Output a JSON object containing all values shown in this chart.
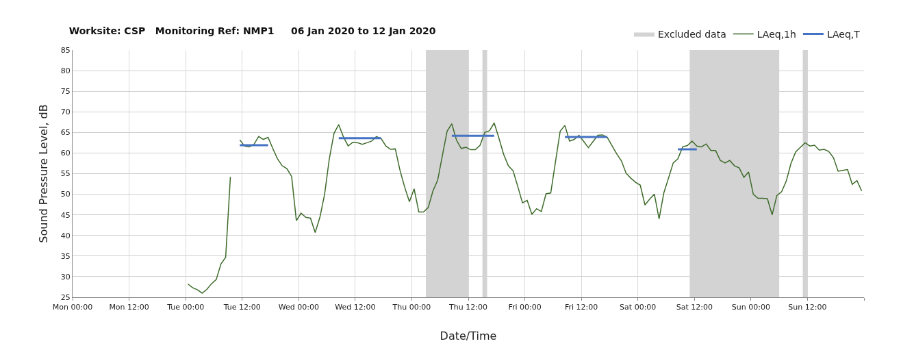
{
  "chart_data": {
    "type": "line",
    "title": "Worksite: CSP   Monitoring Ref: NMP1     06 Jan 2020 to 12 Jan 2020",
    "xlabel": "Date/Time",
    "ylabel": "Sound Pressure Level, dB",
    "xlim": [
      "2020-01-06T00:00",
      "2020-01-13T00:00"
    ],
    "ylim": [
      25,
      85
    ],
    "yticks": [
      25,
      30,
      35,
      40,
      45,
      50,
      55,
      60,
      65,
      70,
      75,
      80,
      85
    ],
    "xticks": [
      {
        "value": "2020-01-06T00:00",
        "label": "Mon 00:00"
      },
      {
        "value": "2020-01-06T12:00",
        "label": "Mon 12:00"
      },
      {
        "value": "2020-01-07T00:00",
        "label": "Tue 00:00"
      },
      {
        "value": "2020-01-07T12:00",
        "label": "Tue 12:00"
      },
      {
        "value": "2020-01-08T00:00",
        "label": "Wed 00:00"
      },
      {
        "value": "2020-01-08T12:00",
        "label": "Wed 12:00"
      },
      {
        "value": "2020-01-09T00:00",
        "label": "Thu 00:00"
      },
      {
        "value": "2020-01-09T12:00",
        "label": "Thu 12:00"
      },
      {
        "value": "2020-01-10T00:00",
        "label": "Fri 00:00"
      },
      {
        "value": "2020-01-10T12:00",
        "label": "Fri 12:00"
      },
      {
        "value": "2020-01-11T00:00",
        "label": "Sat 00:00"
      },
      {
        "value": "2020-01-11T12:00",
        "label": "Sat 12:00"
      },
      {
        "value": "2020-01-12T00:00",
        "label": "Sun 00:00"
      },
      {
        "value": "2020-01-12T12:00",
        "label": "Sun 12:00"
      },
      {
        "value": "2020-01-13T00:00",
        "label": null
      }
    ],
    "grid": true,
    "legend": "top right",
    "marker": "none",
    "line_style": "solid",
    "bands": [
      {
        "axis": "x",
        "from": "2020-01-09T03:00",
        "to": "2020-01-09T12:00",
        "label": "Excluded data",
        "color": "#d3d3d3"
      },
      {
        "axis": "x",
        "from": "2020-01-09T15:00",
        "to": "2020-01-09T16:00",
        "color": "#d3d3d3"
      },
      {
        "axis": "x",
        "from": "2020-01-11T11:00",
        "to": "2020-01-12T06:00",
        "color": "#d3d3d3"
      },
      {
        "axis": "x",
        "from": "2020-01-12T11:00",
        "to": "2020-01-12T12:00",
        "color": "#d3d3d3"
      }
    ],
    "series": [
      {
        "name": "LAeq,1h",
        "color": "#3d6b2a",
        "x": [
          "2020-01-07T00:30",
          "2020-01-07T01:30",
          "2020-01-07T02:30",
          "2020-01-07T03:30",
          "2020-01-07T04:30",
          "2020-01-07T05:30",
          "2020-01-07T06:30",
          "2020-01-07T07:30",
          "2020-01-07T08:30",
          "2020-01-07T09:30",
          "2020-01-07T10:30",
          "2020-01-07T11:30",
          "2020-01-07T12:30",
          "2020-01-07T13:30",
          "2020-01-07T14:30",
          "2020-01-07T15:30",
          "2020-01-07T16:30",
          "2020-01-07T17:30",
          "2020-01-07T18:30",
          "2020-01-07T19:30",
          "2020-01-07T20:30",
          "2020-01-07T21:30",
          "2020-01-07T22:30",
          "2020-01-07T23:30",
          "2020-01-08T00:30",
          "2020-01-08T01:30",
          "2020-01-08T02:30",
          "2020-01-08T03:30",
          "2020-01-08T04:30",
          "2020-01-08T05:30",
          "2020-01-08T06:30",
          "2020-01-08T07:30",
          "2020-01-08T08:30",
          "2020-01-08T09:30",
          "2020-01-08T10:30",
          "2020-01-08T11:30",
          "2020-01-08T12:30",
          "2020-01-08T13:30",
          "2020-01-08T14:30",
          "2020-01-08T15:30",
          "2020-01-08T16:30",
          "2020-01-08T17:30",
          "2020-01-08T18:30",
          "2020-01-08T19:30",
          "2020-01-08T20:30",
          "2020-01-08T21:30",
          "2020-01-08T22:30",
          "2020-01-08T23:30",
          "2020-01-09T00:30",
          "2020-01-09T01:30",
          "2020-01-09T02:30",
          "2020-01-09T03:30",
          "2020-01-09T04:30",
          "2020-01-09T05:30",
          "2020-01-09T06:30",
          "2020-01-09T07:30",
          "2020-01-09T08:30",
          "2020-01-09T09:30",
          "2020-01-09T10:30",
          "2020-01-09T11:30",
          "2020-01-09T12:30",
          "2020-01-09T13:30",
          "2020-01-09T14:30",
          "2020-01-09T15:30",
          "2020-01-09T16:30",
          "2020-01-09T17:30",
          "2020-01-09T18:30",
          "2020-01-09T19:30",
          "2020-01-09T20:30",
          "2020-01-09T21:30",
          "2020-01-09T22:30",
          "2020-01-09T23:30",
          "2020-01-10T00:30",
          "2020-01-10T01:30",
          "2020-01-10T02:30",
          "2020-01-10T03:30",
          "2020-01-10T04:30",
          "2020-01-10T05:30",
          "2020-01-10T06:30",
          "2020-01-10T07:30",
          "2020-01-10T08:30",
          "2020-01-10T09:30",
          "2020-01-10T10:30",
          "2020-01-10T11:30",
          "2020-01-10T12:30",
          "2020-01-10T13:30",
          "2020-01-10T14:30",
          "2020-01-10T15:30",
          "2020-01-10T16:30",
          "2020-01-10T17:30",
          "2020-01-10T18:30",
          "2020-01-10T19:30",
          "2020-01-10T20:30",
          "2020-01-10T21:30",
          "2020-01-10T22:30",
          "2020-01-10T23:30",
          "2020-01-11T00:30",
          "2020-01-11T01:30",
          "2020-01-11T02:30",
          "2020-01-11T03:30",
          "2020-01-11T04:30",
          "2020-01-11T05:30",
          "2020-01-11T06:30",
          "2020-01-11T07:30",
          "2020-01-11T08:30",
          "2020-01-11T09:30",
          "2020-01-11T10:30",
          "2020-01-11T11:30",
          "2020-01-11T12:30",
          "2020-01-11T13:30",
          "2020-01-11T14:30",
          "2020-01-11T15:30",
          "2020-01-11T16:30",
          "2020-01-11T17:30",
          "2020-01-11T18:30",
          "2020-01-11T19:30",
          "2020-01-11T20:30",
          "2020-01-11T21:30",
          "2020-01-11T22:30",
          "2020-01-11T23:30",
          "2020-01-12T00:30",
          "2020-01-12T01:30",
          "2020-01-12T02:30",
          "2020-01-12T03:30",
          "2020-01-12T04:30",
          "2020-01-12T05:30",
          "2020-01-12T06:30",
          "2020-01-12T07:30",
          "2020-01-12T08:30",
          "2020-01-12T09:30",
          "2020-01-12T10:30",
          "2020-01-12T11:30",
          "2020-01-12T12:30",
          "2020-01-12T13:30",
          "2020-01-12T14:30",
          "2020-01-12T15:30",
          "2020-01-12T16:30",
          "2020-01-12T17:30",
          "2020-01-12T18:30",
          "2020-01-12T19:30",
          "2020-01-12T20:30",
          "2020-01-12T21:30",
          "2020-01-12T22:30",
          "2020-01-12T23:30"
        ],
        "values": [
          28.2,
          27.3,
          26.8,
          26.0,
          26.9,
          28.3,
          29.3,
          33.1,
          34.7,
          54.2,
          null,
          63.2,
          61.7,
          61.5,
          62.1,
          64.0,
          63.3,
          63.8,
          61.1,
          58.6,
          56.9,
          56.2,
          54.3,
          43.6,
          45.4,
          44.4,
          44.2,
          40.7,
          44.4,
          50.0,
          58.6,
          64.8,
          66.9,
          63.9,
          61.7,
          62.6,
          62.5,
          62.1,
          62.5,
          62.9,
          64.0,
          63.5,
          61.7,
          60.9,
          61.0,
          55.8,
          51.7,
          48.2,
          51.3,
          45.7,
          45.7,
          46.8,
          50.8,
          53.4,
          59.4,
          65.3,
          67.1,
          63.1,
          61.1,
          61.4,
          60.8,
          60.8,
          61.9,
          65.0,
          65.4,
          67.3,
          63.6,
          59.7,
          56.9,
          55.7,
          51.9,
          47.9,
          48.5,
          45.1,
          46.5,
          45.8,
          50.1,
          50.3,
          57.8,
          65.3,
          66.7,
          62.9,
          63.3,
          64.3,
          62.8,
          61.3,
          62.8,
          64.3,
          64.4,
          63.8,
          61.8,
          59.8,
          58.1,
          55.1,
          53.9,
          52.9,
          52.2,
          47.4,
          48.8,
          50.0,
          44.0,
          50.3,
          53.9,
          57.6,
          58.6,
          61.5,
          61.8,
          62.9,
          61.7,
          61.5,
          62.2,
          60.6,
          60.6,
          58.2,
          57.6,
          58.2,
          56.9,
          56.4,
          54.1,
          55.4,
          50.0,
          49.0,
          49.0,
          48.9,
          45.0,
          49.7,
          50.6,
          53.2,
          57.5,
          60.3,
          61.4,
          62.5,
          61.7,
          61.9,
          60.7,
          60.9,
          60.4,
          58.9,
          55.6,
          55.8,
          56.0,
          52.4,
          53.3,
          50.8
        ]
      },
      {
        "name": "LAeq,T",
        "color": "#4472c4",
        "x": [
          "2020-01-07T11:30",
          "2020-01-07T17:30",
          null,
          "2020-01-08T08:30",
          "2020-01-08T17:30",
          null,
          "2020-01-09T08:30",
          "2020-01-09T17:30",
          null,
          "2020-01-10T08:30",
          "2020-01-10T17:30",
          null,
          "2020-01-11T08:30",
          "2020-01-11T12:30"
        ],
        "values": [
          61.9,
          61.9,
          null,
          63.6,
          63.6,
          null,
          64.2,
          64.2,
          null,
          63.9,
          63.9,
          null,
          60.9,
          60.9
        ]
      }
    ]
  }
}
